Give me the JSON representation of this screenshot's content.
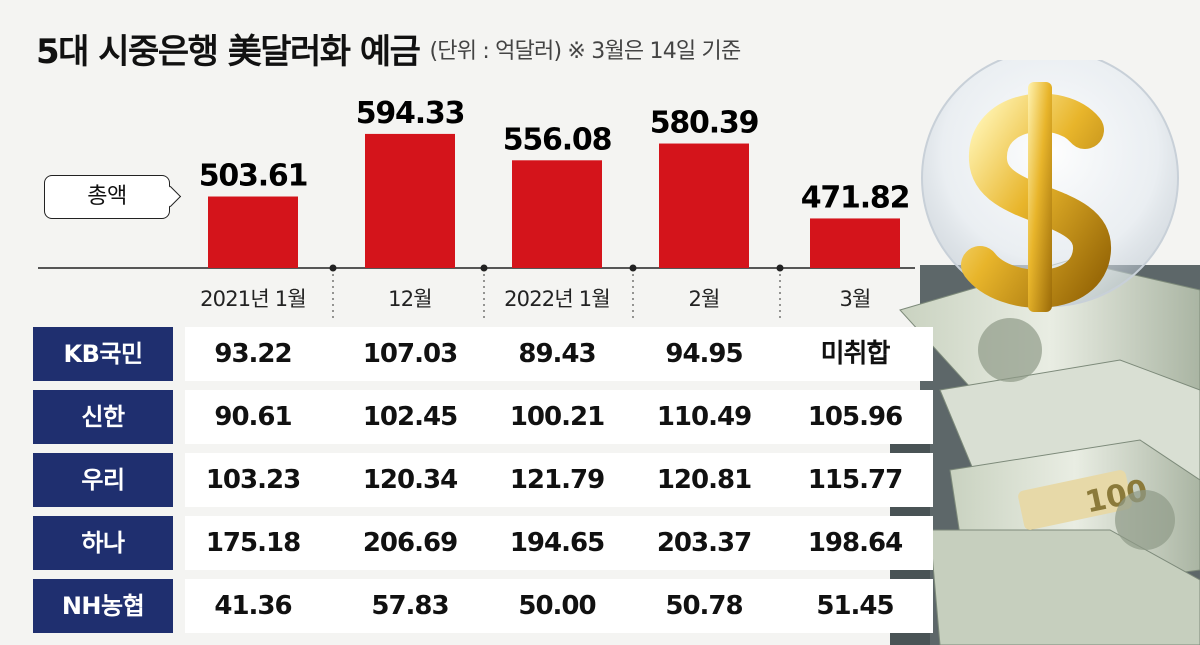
{
  "title": {
    "main": "5대 시중은행 美달러화 예금",
    "sub": "(단위 : 억달러)  ※ 3월은 14일 기준"
  },
  "total_label": "총액",
  "chart_data": {
    "type": "bar",
    "title": "5대 시중은행 美달러화 예금",
    "categories": [
      "2021년 1월",
      "12월",
      "2022년 1월",
      "2월",
      "3월"
    ],
    "values": [
      503.61,
      594.33,
      556.08,
      580.39,
      471.82
    ],
    "value_labels": [
      "503.61",
      "594.33",
      "556.08",
      "580.39",
      "471.82"
    ],
    "ylim": [
      400,
      600
    ],
    "grid": false,
    "bar_color": "#d4141b"
  },
  "table": {
    "rows": [
      {
        "bank": "KB국민",
        "values": [
          "93.22",
          "107.03",
          "89.43",
          "94.95",
          "미취합"
        ]
      },
      {
        "bank": "신한",
        "values": [
          "90.61",
          "102.45",
          "100.21",
          "110.49",
          "105.96"
        ]
      },
      {
        "bank": "우리",
        "values": [
          "103.23",
          "120.34",
          "121.79",
          "120.81",
          "115.77"
        ]
      },
      {
        "bank": "하나",
        "values": [
          "175.18",
          "206.69",
          "194.65",
          "203.37",
          "198.64"
        ]
      },
      {
        "bank": "NH농협",
        "values": [
          "41.36",
          "57.83",
          "50.00",
          "50.78",
          "51.45"
        ]
      }
    ]
  },
  "colors": {
    "bar": "#d4141b",
    "bank_label_bg": "#1f2f6f",
    "background": "#f4f4f2"
  },
  "decoration": [
    "dollar-sign-icon",
    "banknote-stack"
  ]
}
